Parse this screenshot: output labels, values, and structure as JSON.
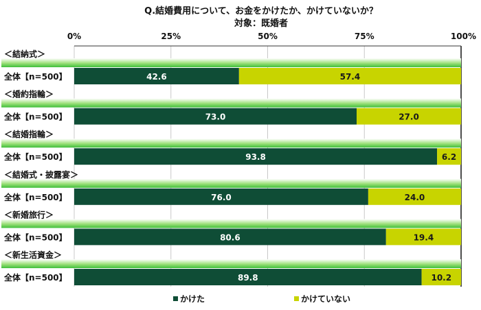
{
  "chart_data": {
    "type": "bar",
    "orientation": "horizontal",
    "stacked": true,
    "percent_stacked": true,
    "title": "Q.結婚費用について、お金をかけたか、かけていないか？",
    "subtitle": "対象：既婚者",
    "xlim": [
      0,
      100
    ],
    "x_ticks": [
      "0%",
      "25%",
      "50%",
      "75%",
      "100%"
    ],
    "grid": true,
    "legend_position": "bottom",
    "groups": [
      {
        "header": "＜結納式＞",
        "category": "全体【n=500】"
      },
      {
        "header": "＜婚約指輪＞",
        "category": "全体【n=500】"
      },
      {
        "header": "＜結婚指輪＞",
        "category": "全体【n=500】"
      },
      {
        "header": "＜結婚式・披露宴＞",
        "category": "全体【n=500】"
      },
      {
        "header": "＜新婚旅行＞",
        "category": "全体【n=500】"
      },
      {
        "header": "＜新生活資金＞",
        "category": "全体【n=500】"
      }
    ],
    "series": [
      {
        "name": "かけた",
        "color": "#0f4d36",
        "label_color": "#ffffff",
        "values": [
          42.6,
          73.0,
          93.8,
          76.0,
          80.6,
          89.8
        ]
      },
      {
        "name": "かけていない",
        "color": "#c8d400",
        "label_color": "#1a1a1a",
        "values": [
          57.4,
          27.0,
          6.2,
          24.0,
          19.4,
          10.2
        ]
      }
    ]
  }
}
